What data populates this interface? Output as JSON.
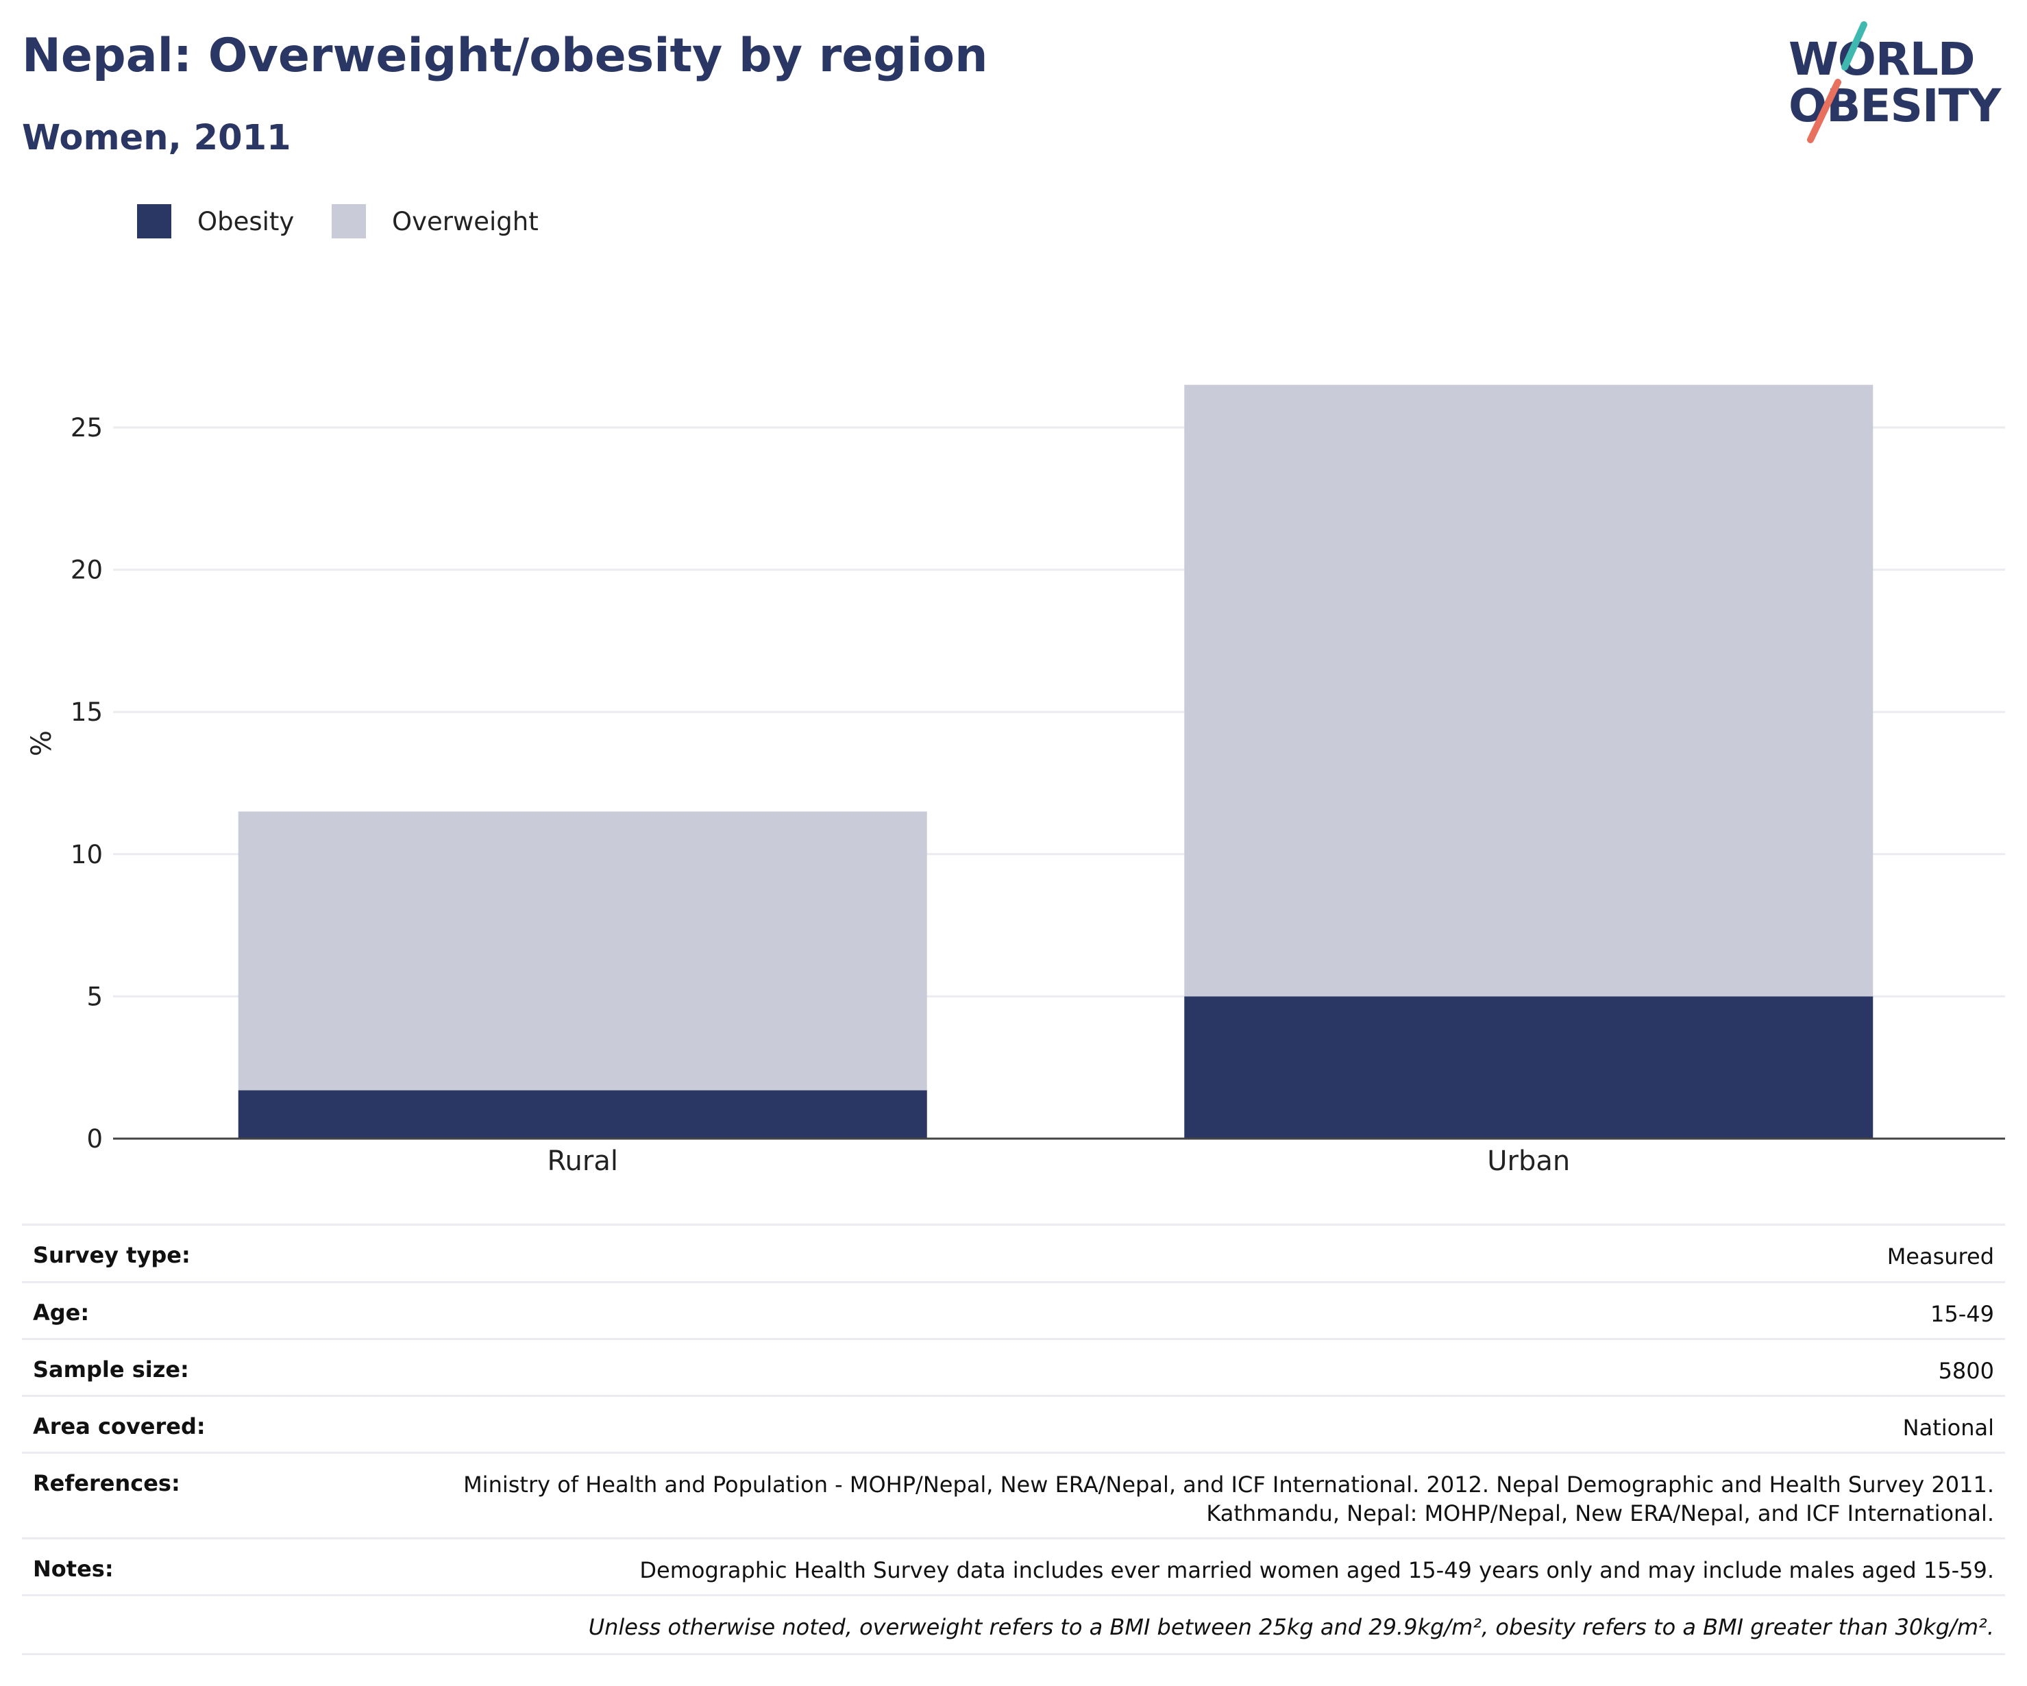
{
  "header": {
    "title": "Nepal: Overweight/obesity by region",
    "subtitle": "Women, 2011"
  },
  "logo": {
    "line1": "WORLD",
    "line2": "OBESITY",
    "colors": {
      "text": "#2a3764",
      "slash_top": "#3fb8b0",
      "slash_bottom": "#e8705f"
    }
  },
  "legend": [
    {
      "label": "Obesity",
      "color": "#2a3764"
    },
    {
      "label": "Overweight",
      "color": "#c9ccd8"
    }
  ],
  "chart_data": {
    "type": "bar",
    "stacked": true,
    "categories": [
      "Rural",
      "Urban"
    ],
    "series": [
      {
        "name": "Obesity",
        "color": "#2a3764",
        "values": [
          1.7,
          5.0
        ]
      },
      {
        "name": "Overweight",
        "color": "#c9ccd8",
        "values": [
          9.8,
          21.5
        ]
      }
    ],
    "ylabel": "%",
    "xlabel": "",
    "ylim": [
      0,
      28
    ],
    "yticks": [
      0,
      5,
      10,
      15,
      20,
      25
    ],
    "grid": true,
    "legend_position": "top-left"
  },
  "metadata": {
    "rows": [
      {
        "label": "Survey type:",
        "value": "Measured"
      },
      {
        "label": "Age:",
        "value": "15-49"
      },
      {
        "label": "Sample size:",
        "value": "5800"
      },
      {
        "label": "Area covered:",
        "value": "National"
      },
      {
        "label": "References:",
        "value": "Ministry of Health and Population - MOHP/Nepal, New ERA/Nepal, and ICF International. 2012. Nepal Demographic and Health Survey 2011. Kathmandu, Nepal: MOHP/Nepal, New ERA/Nepal, and ICF International."
      },
      {
        "label": "Notes:",
        "value": "Demographic Health Survey data includes ever married women aged 15-49 years only and may include males aged 15-59."
      }
    ],
    "footnote": "Unless otherwise noted, overweight refers to a BMI between 25kg and 29.9kg/m², obesity refers to a BMI greater than 30kg/m²."
  }
}
